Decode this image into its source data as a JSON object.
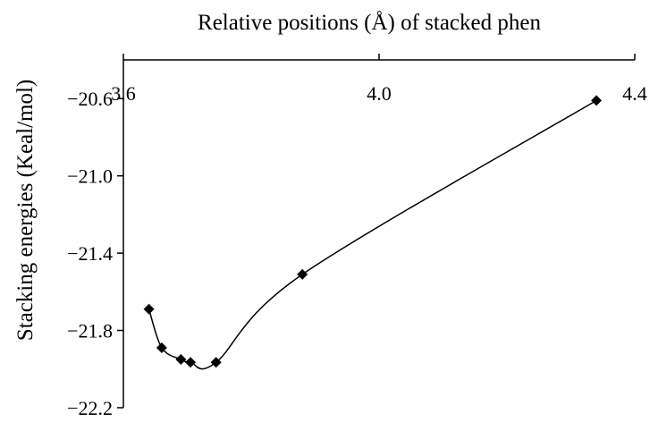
{
  "chart_data": {
    "type": "scatter",
    "title": "Relative positions (Å) of stacked phen",
    "xlabel": "Relative positions (Å) of stacked phen",
    "ylabel": "Stacking energies (Keal/mol)",
    "xlim": [
      3.6,
      4.4
    ],
    "ylim": [
      -22.2,
      -20.4
    ],
    "x_ticks": [
      3.6,
      4.0,
      4.4
    ],
    "x_tick_labels": [
      "3.6",
      "4.0",
      "4.4"
    ],
    "y_ticks": [
      -20.6,
      -21.0,
      -21.4,
      -21.8,
      -22.2
    ],
    "y_tick_labels": [
      "−20.6",
      "−21.0",
      "−21.4",
      "−21.8",
      "−22.2"
    ],
    "x_axis_position": "top",
    "grid": false,
    "legend": "none",
    "line_style": "smoothed",
    "marker": "diamond",
    "color": "#000000",
    "series": [
      {
        "x": [
          3.64,
          3.66,
          3.69,
          3.705,
          3.745,
          3.88,
          4.34
        ],
        "y": [
          -21.69,
          -21.89,
          -21.95,
          -21.965,
          -21.965,
          -21.51,
          -20.61
        ]
      }
    ]
  }
}
